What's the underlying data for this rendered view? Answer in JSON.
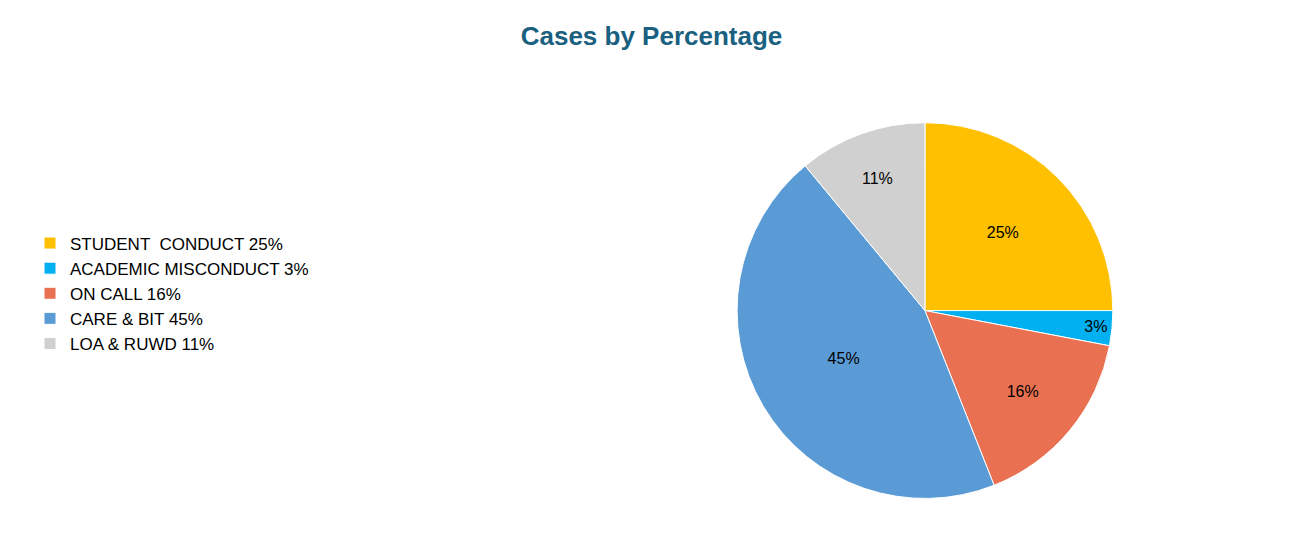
{
  "chart_data": {
    "type": "pie",
    "title": "Cases by Percentage",
    "categories": [
      "STUDENT  CONDUCT 25%",
      "ACADEMIC MISCONDUCT 3%",
      "ON CALL 16%",
      "CARE & BIT 45%",
      "LOA & RUWD 11%"
    ],
    "values": [
      25,
      3,
      16,
      45,
      11
    ],
    "value_labels": [
      "25%",
      "3%",
      "16%",
      "45%",
      "11%"
    ],
    "colors": [
      "#ffc000",
      "#00b0f0",
      "#e97050",
      "#5b9bd5",
      "#d0d0d0"
    ],
    "data_labels": true,
    "legend": "left"
  }
}
